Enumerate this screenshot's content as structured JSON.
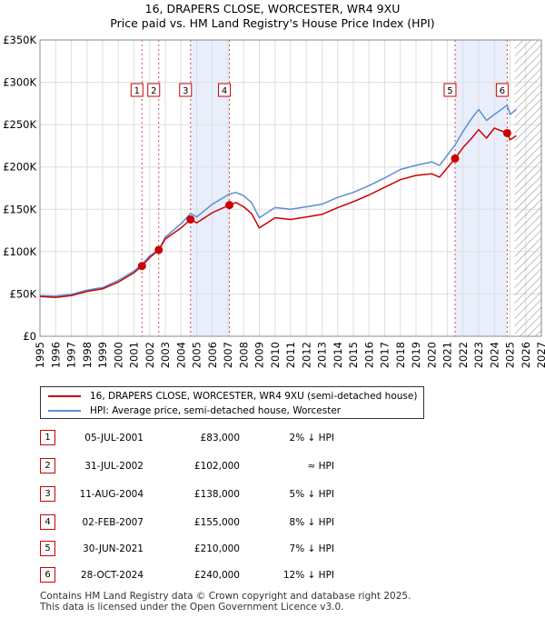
{
  "title_line1": "16, DRAPERS CLOSE, WORCESTER, WR4 9XU",
  "title_line2": "Price paid vs. HM Land Registry's House Price Index (HPI)",
  "chart_data": {
    "type": "line",
    "xlim": [
      1995,
      2027
    ],
    "ylim": [
      0,
      350000
    ],
    "yticks": [
      0,
      50000,
      100000,
      150000,
      200000,
      250000,
      300000,
      350000
    ],
    "ytick_labels": [
      "£0",
      "£50K",
      "£100K",
      "£150K",
      "£200K",
      "£250K",
      "£300K",
      "£350K"
    ],
    "xticks": [
      "1995",
      "1996",
      "1997",
      "1998",
      "1999",
      "2000",
      "2001",
      "2002",
      "2003",
      "2004",
      "2005",
      "2006",
      "2007",
      "2008",
      "2009",
      "2010",
      "2011",
      "2012",
      "2013",
      "2014",
      "2015",
      "2016",
      "2017",
      "2018",
      "2019",
      "2020",
      "2021",
      "2022",
      "2023",
      "2024",
      "2025",
      "2026",
      "2027"
    ],
    "shaded_periods": [
      [
        2004.61,
        2007.09
      ],
      [
        2021.49,
        2024.82
      ]
    ],
    "future_hatch_start": 2025.3,
    "series": [
      {
        "name": "16, DRAPERS CLOSE, WORCESTER, WR4 9XU (semi-detached house)",
        "color": "#cc0000",
        "x": [
          1995.0,
          1996.0,
          1997.0,
          1998.0,
          1999.0,
          2000.0,
          2001.0,
          2001.51,
          2002.0,
          2002.58,
          2003.0,
          2004.0,
          2004.61,
          2005.0,
          2006.0,
          2007.09,
          2007.5,
          2008.0,
          2008.5,
          2009.0,
          2010.0,
          2011.0,
          2012.0,
          2013.0,
          2014.0,
          2015.0,
          2016.0,
          2017.0,
          2018.0,
          2019.0,
          2020.0,
          2020.5,
          2021.49,
          2022.0,
          2022.5,
          2023.0,
          2023.5,
          2024.0,
          2024.82,
          2025.0,
          2025.4
        ],
        "values": [
          47000,
          46000,
          48000,
          53000,
          56000,
          64000,
          75000,
          83000,
          93000,
          102000,
          115000,
          128000,
          138000,
          134000,
          146000,
          155000,
          158000,
          153000,
          145000,
          128000,
          140000,
          138000,
          141000,
          144000,
          152000,
          159000,
          167000,
          176000,
          185000,
          190000,
          192000,
          188000,
          210000,
          223000,
          233000,
          244000,
          234000,
          246000,
          240000,
          232000,
          237000
        ]
      },
      {
        "name": "HPI: Average price, semi-detached house, Worcester",
        "color": "#5b8fd1",
        "x": [
          1995.0,
          1996.0,
          1997.0,
          1998.0,
          1999.0,
          2000.0,
          2001.0,
          2001.51,
          2002.0,
          2002.58,
          2003.0,
          2004.0,
          2004.61,
          2005.0,
          2006.0,
          2007.09,
          2007.5,
          2008.0,
          2008.5,
          2009.0,
          2010.0,
          2011.0,
          2012.0,
          2013.0,
          2014.0,
          2015.0,
          2016.0,
          2017.0,
          2018.0,
          2019.0,
          2020.0,
          2020.5,
          2021.49,
          2022.0,
          2022.5,
          2023.0,
          2023.5,
          2024.0,
          2024.82,
          2025.0,
          2025.4
        ],
        "values": [
          48000,
          47500,
          49500,
          54500,
          57500,
          66000,
          77000,
          85000,
          95000,
          102000,
          117000,
          133000,
          145000,
          141000,
          156000,
          168000,
          170000,
          166000,
          158000,
          140000,
          152000,
          150000,
          153000,
          156000,
          164000,
          170000,
          178000,
          187000,
          197000,
          202000,
          206000,
          202000,
          226000,
          242000,
          256000,
          268000,
          255000,
          262000,
          273000,
          262000,
          268000
        ]
      }
    ],
    "sale_points": [
      {
        "label": "1",
        "x": 2001.51,
        "value": 83000
      },
      {
        "label": "2",
        "x": 2002.58,
        "value": 102000
      },
      {
        "label": "3",
        "x": 2004.61,
        "value": 138000
      },
      {
        "label": "4",
        "x": 2007.09,
        "value": 155000
      },
      {
        "label": "5",
        "x": 2021.49,
        "value": 210000
      },
      {
        "label": "6",
        "x": 2024.82,
        "value": 240000
      }
    ]
  },
  "legend": {
    "property": "16, DRAPERS CLOSE, WORCESTER, WR4 9XU (semi-detached house)",
    "hpi": "HPI: Average price, semi-detached house, Worcester"
  },
  "transactions": [
    {
      "num": "1",
      "date": "05-JUL-2001",
      "price": "£83,000",
      "hpi": "2% ↓ HPI"
    },
    {
      "num": "2",
      "date": "31-JUL-2002",
      "price": "£102,000",
      "hpi": "≈ HPI"
    },
    {
      "num": "3",
      "date": "11-AUG-2004",
      "price": "£138,000",
      "hpi": "5% ↓ HPI"
    },
    {
      "num": "4",
      "date": "02-FEB-2007",
      "price": "£155,000",
      "hpi": "8% ↓ HPI"
    },
    {
      "num": "5",
      "date": "30-JUN-2021",
      "price": "£210,000",
      "hpi": "7% ↓ HPI"
    },
    {
      "num": "6",
      "date": "28-OCT-2024",
      "price": "£240,000",
      "hpi": "12% ↓ HPI"
    }
  ],
  "footer_line1": "Contains HM Land Registry data © Crown copyright and database right 2025.",
  "footer_line2": "This data is licensed under the Open Government Licence v3.0.",
  "colors": {
    "property": "#cc0000",
    "hpi": "#5b8fd1",
    "shade": "#e8eefb",
    "grid": "#dddddd"
  }
}
